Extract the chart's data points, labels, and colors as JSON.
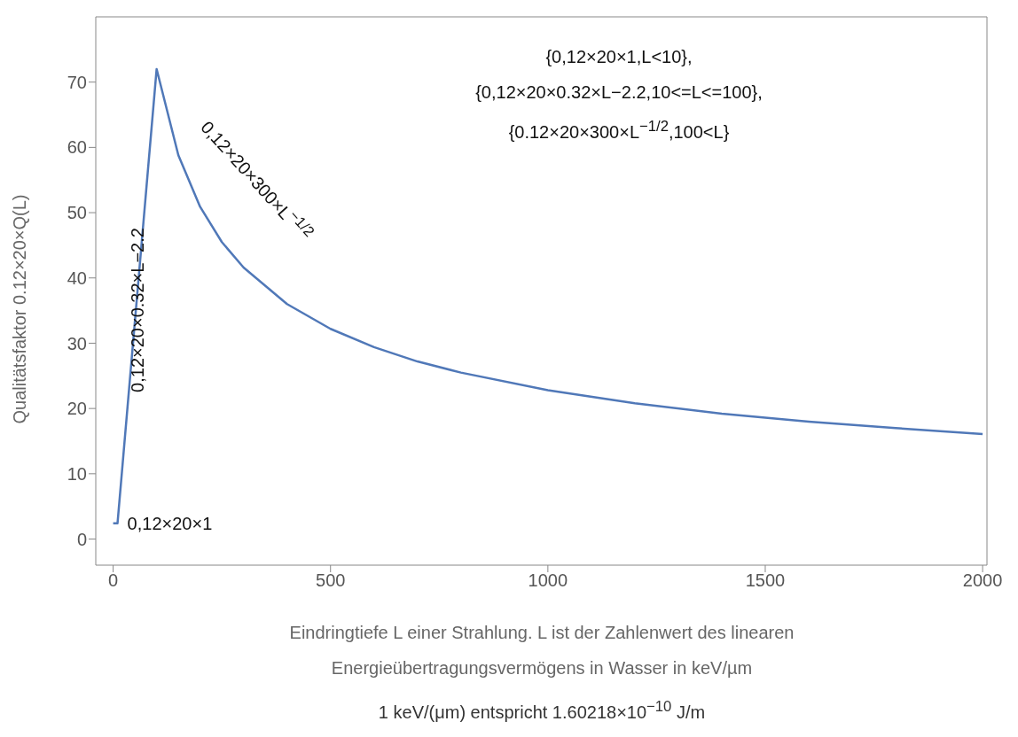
{
  "chart_data": {
    "type": "line",
    "ylabel": "Qualitätsfaktor 0.12×20×Q(L)",
    "xlabel": "Eindringtiefe L einer Strahlung. L ist der Zahlenwert des linearen Energieübertragungsvermögens in Wasser in keV/µm",
    "x": [
      0,
      10,
      100,
      150,
      200,
      250,
      300,
      400,
      500,
      600,
      700,
      800,
      1000,
      1200,
      1400,
      1600,
      1800,
      2000
    ],
    "series": [
      {
        "color": "#5078b8",
        "values": [
          2.4,
          2.4,
          72,
          58.8,
          50.9,
          45.5,
          41.6,
          36,
          32.2,
          29.4,
          27.2,
          25.5,
          22.8,
          20.8,
          19.2,
          18,
          17,
          16.1
        ]
      }
    ],
    "xlim": [
      -40,
      2010
    ],
    "ylim": [
      -4,
      80
    ],
    "xticks": [
      0,
      500,
      1000,
      1500,
      2000
    ],
    "yticks": [
      0,
      10,
      20,
      30,
      40,
      50,
      60,
      70
    ],
    "marker": "none",
    "line_style": "solid",
    "annotations": [
      "0,12×20×1",
      "0,12×20×0.32×L−2.2",
      "0,12×20×300×L$^{−1/2}$",
      "{0,12×20×1,L<10},",
      "{0,12×20×0.32×L−2.2,10<=L<=100},",
      "{0.12×20×300×L$^{−1/2}$,100<L}",
      "1 keV/(μm) entspricht 1.60218×10$^{−10}$ J/m"
    ]
  }
}
